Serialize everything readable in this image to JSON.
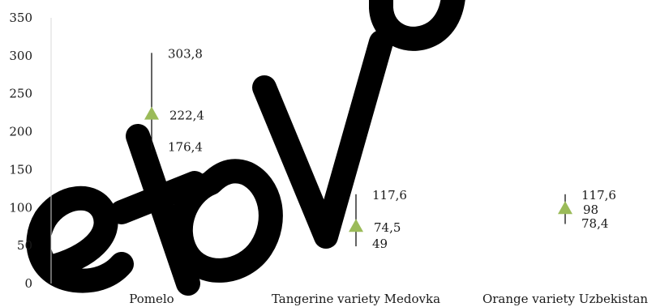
{
  "chart_data": {
    "type": "scatter",
    "title": "",
    "xlabel": "",
    "ylabel": "",
    "ylim": [
      0,
      350
    ],
    "yticks": [
      "0",
      "50",
      "100",
      "150",
      "200",
      "250",
      "300",
      "350"
    ],
    "grid": false,
    "legend": "none",
    "categories": [
      "Pomelo",
      "Tangerine variety Medovka",
      "Orange variety Uzbekistan"
    ],
    "series": [
      {
        "marker": "triangle",
        "color": "#9bbb59",
        "values": [
          222.4,
          74.5,
          98
        ],
        "low": [
          176.4,
          49,
          78.4
        ],
        "high": [
          303.8,
          117.6,
          117.6
        ],
        "value_labels": [
          "222,4",
          "74,5",
          "98"
        ],
        "low_labels": [
          "176,4",
          "49",
          "78,4"
        ],
        "high_labels": [
          "303,8",
          "117,6",
          "117,6"
        ]
      }
    ],
    "watermark": "etov U"
  }
}
